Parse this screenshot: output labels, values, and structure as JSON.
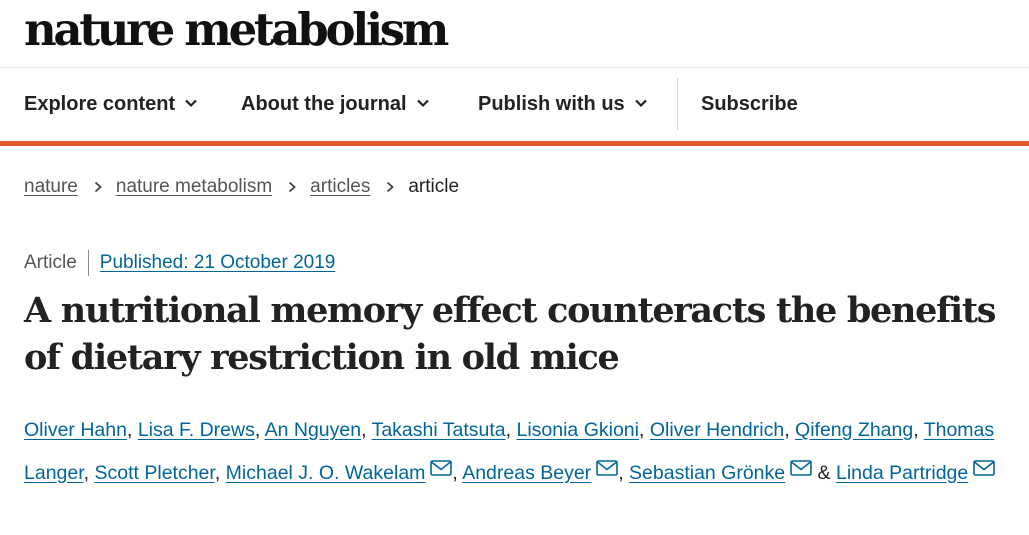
{
  "brand": {
    "logo": "nature metabolism"
  },
  "nav": {
    "items": [
      {
        "label": "Explore content",
        "has_dropdown": true
      },
      {
        "label": "About the journal",
        "has_dropdown": true
      },
      {
        "label": "Publish with us",
        "has_dropdown": true
      },
      {
        "label": "Subscribe",
        "has_dropdown": false
      }
    ],
    "accent_color": "#e05b2b"
  },
  "breadcrumb": {
    "items": [
      "nature",
      "nature metabolism",
      "articles"
    ],
    "current": "article"
  },
  "article": {
    "type": "Article",
    "published": "Published: 21 October 2019",
    "title_line1": "A nutritional memory effect counteracts the benefits",
    "title_line2": "of dietary restriction in old mice",
    "authors": [
      "Oliver Hahn",
      "Lisa F. Drews",
      "An Nguyen",
      "Takashi Tatsuta",
      "Lisonia Gkioni",
      "Oliver Hendrich",
      "Qifeng Zhang",
      "Thomas Langer",
      "Scott Pletcher",
      "Michael J. O. Wakelam",
      "Andreas Beyer",
      "Sebastian Grönke",
      "Linda Partridge"
    ],
    "separator": ", ",
    "last_separator": " & ",
    "link_color": "#006699"
  },
  "icons": {
    "dropdown": "chevron-down-icon",
    "breadcrumb_separator": "chevron-right-icon",
    "contact": "mail-icon"
  }
}
